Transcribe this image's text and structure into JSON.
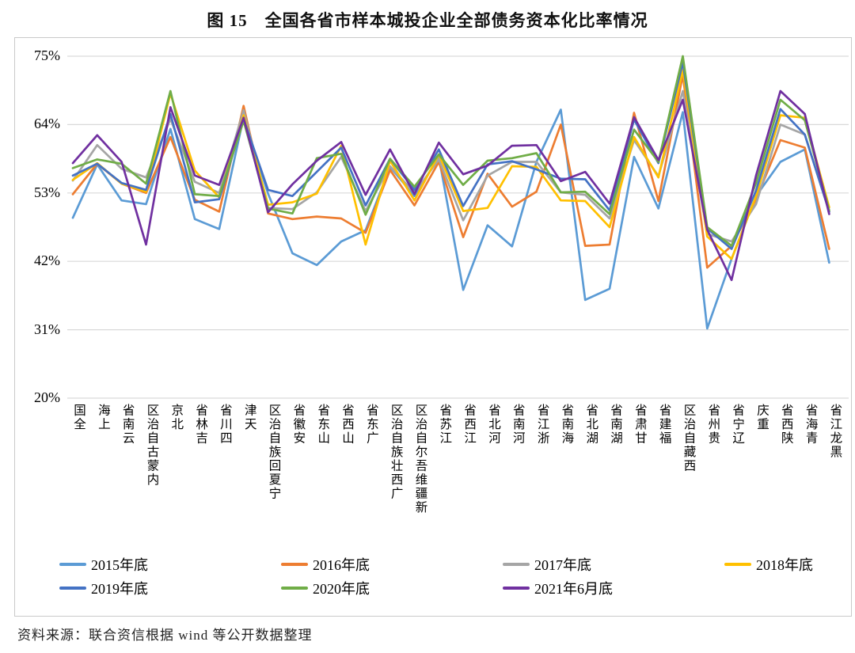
{
  "page": {
    "title_label": "图 15　全国各省市样本城投企业全部债务资本化比率情况",
    "source_note": "资料来源：联合资信根据 wind 等公开数据整理"
  },
  "chart_data": {
    "type": "line",
    "title": "图 15　全国各省市样本城投企业全部债务资本化比率情况",
    "grid": true,
    "legend_position": "bottom",
    "y_axis": {
      "unit": "%",
      "min": 20,
      "max": 75,
      "tick_labels": [
        "75%",
        "64%",
        "53%",
        "42%",
        "31%",
        "20%"
      ],
      "tick_values": [
        75,
        64,
        53,
        42,
        31,
        20
      ]
    },
    "categories": [
      "全国",
      "上海",
      "云南省",
      "内蒙古自治区",
      "北京",
      "吉林省",
      "四川省",
      "天津",
      "宁夏回族自治区",
      "安徽省",
      "山东省",
      "山西省",
      "广东省",
      "广西壮族自治区",
      "新疆维吾尔自治区",
      "江苏省",
      "江西省",
      "河北省",
      "河南省",
      "浙江省",
      "海南省",
      "湖北省",
      "湖南省",
      "甘肃省",
      "福建省",
      "西藏自治区",
      "贵州省",
      "辽宁省",
      "重庆",
      "陕西省",
      "青海省",
      "黑龙江省"
    ],
    "series": [
      {
        "name": "2015年底",
        "color": "#5B9BD5",
        "values": [
          49.0,
          57.6,
          51.8,
          51.2,
          63.3,
          48.8,
          47.2,
          65.2,
          52.9,
          43.3,
          41.4,
          45.2,
          47.0,
          57.2,
          52.5,
          58.8,
          37.4,
          47.8,
          44.4,
          58.0,
          66.4,
          35.8,
          37.6,
          58.8,
          50.5,
          66.0,
          31.2,
          42.4,
          52.5,
          58.0,
          60.0,
          41.8
        ]
      },
      {
        "name": "2016年底",
        "color": "#ED7D31",
        "values": [
          52.8,
          57.7,
          54.5,
          53.0,
          62.0,
          51.9,
          50.0,
          67.0,
          49.7,
          48.8,
          49.2,
          48.9,
          46.6,
          56.7,
          51.0,
          58.0,
          45.9,
          56.1,
          50.8,
          53.2,
          64.0,
          44.5,
          44.7,
          65.9,
          51.7,
          72.0,
          41.0,
          44.5,
          52.0,
          61.5,
          60.3,
          44.0
        ]
      },
      {
        "name": "2017年底",
        "color": "#A5A5A5",
        "values": [
          55.0,
          60.7,
          56.9,
          55.5,
          64.9,
          54.8,
          53.0,
          66.3,
          50.6,
          50.4,
          53.1,
          58.8,
          50.1,
          57.3,
          53.0,
          58.4,
          48.6,
          55.8,
          58.0,
          58.0,
          53.1,
          52.7,
          48.9,
          61.5,
          55.7,
          69.4,
          46.4,
          45.2,
          51.2,
          64.0,
          62.4,
          50.0
        ]
      },
      {
        "name": "2018年底",
        "color": "#FFC000",
        "values": [
          55.1,
          57.8,
          54.5,
          53.2,
          69.0,
          56.6,
          52.3,
          65.5,
          51.1,
          51.5,
          52.9,
          60.6,
          44.7,
          58.2,
          51.8,
          59.2,
          50.1,
          50.6,
          57.3,
          57.2,
          51.8,
          51.7,
          47.5,
          62.0,
          55.5,
          72.8,
          46.0,
          42.4,
          52.5,
          65.5,
          65.1,
          50.7
        ]
      },
      {
        "name": "2019年底",
        "color": "#4472C4",
        "values": [
          55.8,
          57.7,
          54.6,
          53.5,
          65.7,
          51.5,
          52.0,
          64.9,
          53.5,
          52.5,
          56.4,
          60.3,
          51.0,
          58.5,
          53.5,
          60.0,
          50.9,
          57.6,
          58.1,
          56.8,
          55.3,
          55.2,
          50.2,
          64.8,
          57.8,
          74.0,
          47.3,
          44.0,
          53.4,
          66.5,
          62.4,
          50.0
        ]
      },
      {
        "name": "2020年底",
        "color": "#70AD47",
        "values": [
          57.0,
          58.4,
          57.7,
          54.5,
          69.4,
          52.8,
          52.5,
          64.6,
          50.5,
          49.7,
          58.6,
          59.3,
          49.5,
          58.5,
          54.0,
          59.2,
          54.3,
          58.2,
          58.6,
          59.4,
          53.1,
          53.2,
          49.6,
          63.2,
          58.0,
          75.0,
          47.5,
          44.5,
          54.6,
          68.0,
          64.7,
          50.2
        ]
      },
      {
        "name": "2021年6月底",
        "color": "#7030A0",
        "values": [
          57.8,
          62.3,
          58.0,
          44.7,
          66.8,
          55.8,
          54.3,
          65.1,
          49.9,
          54.4,
          58.2,
          61.2,
          52.7,
          60.0,
          52.8,
          61.1,
          56.0,
          57.4,
          60.6,
          60.7,
          54.9,
          56.4,
          51.3,
          65.2,
          58.3,
          68.0,
          47.1,
          39.0,
          55.8,
          69.4,
          65.7,
          49.6
        ]
      }
    ]
  }
}
